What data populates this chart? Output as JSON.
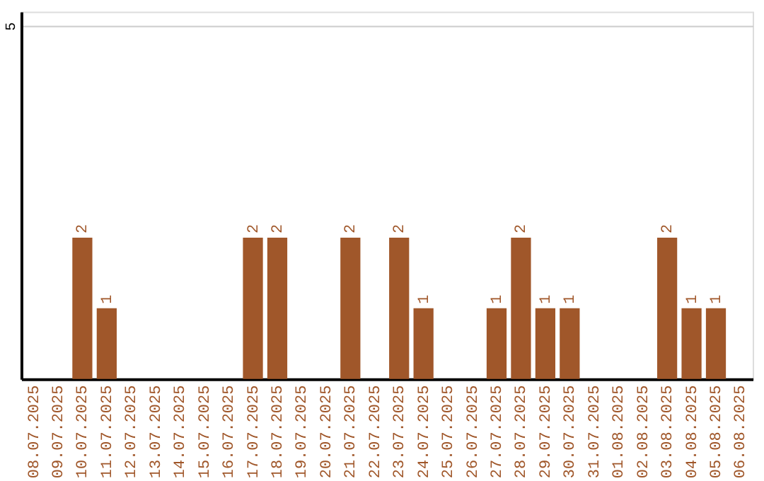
{
  "chart_data": {
    "type": "bar",
    "categories": [
      "08.07.2025",
      "09.07.2025",
      "10.07.2025",
      "11.07.2025",
      "12.07.2025",
      "13.07.2025",
      "14.07.2025",
      "15.07.2025",
      "16.07.2025",
      "17.07.2025",
      "18.07.2025",
      "19.07.2025",
      "20.07.2025",
      "21.07.2025",
      "22.07.2025",
      "23.07.2025",
      "24.07.2025",
      "25.07.2025",
      "26.07.2025",
      "27.07.2025",
      "28.07.2025",
      "29.07.2025",
      "30.07.2025",
      "31.07.2025",
      "01.08.2025",
      "02.08.2025",
      "03.08.2025",
      "04.08.2025",
      "05.08.2025",
      "06.08.2025"
    ],
    "values": [
      null,
      null,
      2,
      1,
      null,
      null,
      null,
      null,
      null,
      2,
      2,
      null,
      null,
      2,
      null,
      2,
      1,
      null,
      null,
      1,
      2,
      1,
      1,
      null,
      null,
      null,
      2,
      1,
      1,
      null
    ],
    "color": "#a0572a",
    "ylim": [
      0,
      5.2
    ],
    "yticks": [
      5
    ],
    "grid": "y",
    "data_labels": true
  }
}
